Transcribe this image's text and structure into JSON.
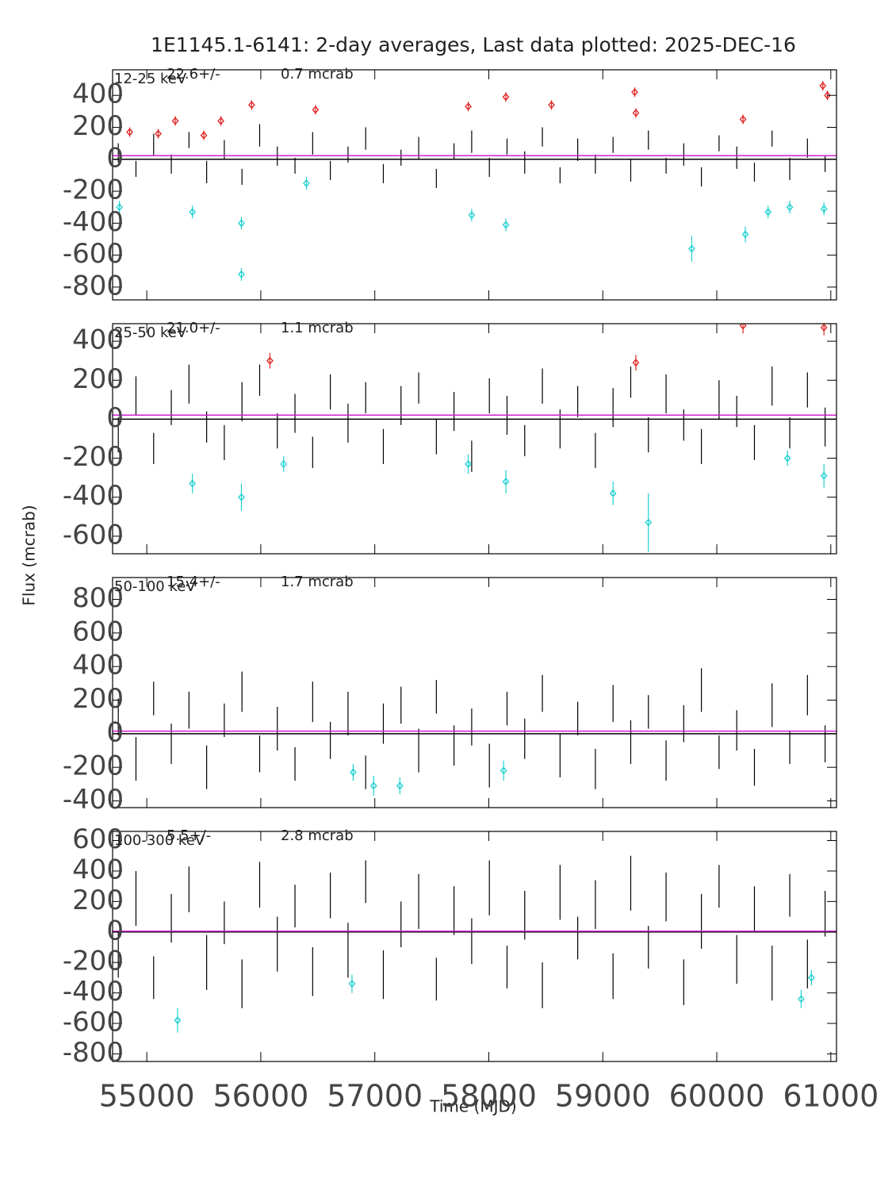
{
  "chart_data": [
    {
      "type": "errorbar",
      "title": "1E1145.1-6141:  2-day averages,  Last data plotted: 2025-DEC-16",
      "label": "12-25 keV",
      "mean": 22.6,
      "mean_label": "22.6+/-",
      "error_label": "0.7 mcrab",
      "xlim": [
        54700,
        61050
      ],
      "xticks": [
        55000,
        56000,
        57000,
        58000,
        59000,
        60000,
        61000
      ],
      "ylim": [
        -880,
        560
      ],
      "yticks": [
        -800,
        -600,
        -400,
        -200,
        0,
        200,
        400
      ],
      "series": [
        {
          "color": "#000000",
          "x": [
            54750,
            54905,
            55060,
            55215,
            55370,
            55525,
            55680,
            55835,
            55990,
            56145,
            56300,
            56455,
            56610,
            56765,
            56920,
            57075,
            57230,
            57385,
            57540,
            57695,
            57850,
            58005,
            58160,
            58315,
            58470,
            58625,
            58780,
            58935,
            59090,
            59245,
            59400,
            59555,
            59710,
            59865,
            60020,
            60175,
            60330,
            60485,
            60640,
            60795,
            60950
          ],
          "values": [
            40,
            -60,
            90,
            -30,
            120,
            -80,
            60,
            -110,
            150,
            20,
            -40,
            100,
            -70,
            30,
            130,
            -90,
            10,
            70,
            -120,
            50,
            110,
            -50,
            80,
            -20,
            140,
            -100,
            60,
            -30,
            90,
            -70,
            120,
            -40,
            30,
            -110,
            100,
            10,
            -80,
            130,
            -60,
            70,
            -30
          ],
          "errors": [
            60,
            50,
            70,
            60,
            50,
            70,
            60,
            50,
            70,
            60,
            50,
            70,
            60,
            50,
            70,
            60,
            50,
            70,
            60,
            50,
            70,
            60,
            50,
            70,
            60,
            50,
            70,
            60,
            50,
            70,
            60,
            50,
            70,
            60,
            50,
            70,
            60,
            50,
            70,
            60,
            50
          ]
        },
        {
          "color": "#e02020",
          "marker": true,
          "x": [
            54850,
            55100,
            55250,
            55500,
            55650,
            55920,
            56480,
            57820,
            58150,
            58550,
            59280,
            59290,
            60230,
            60930,
            60970
          ],
          "values": [
            170,
            160,
            240,
            150,
            240,
            340,
            310,
            330,
            390,
            340,
            420,
            290,
            250,
            460,
            400
          ],
          "errors": [
            30,
            30,
            30,
            30,
            30,
            30,
            30,
            30,
            30,
            30,
            30,
            30,
            30,
            30,
            30
          ]
        },
        {
          "color": "#20d0d0",
          "marker": true,
          "x": [
            54760,
            55400,
            55830,
            55830,
            56400,
            57850,
            58150,
            59780,
            60250,
            60450,
            60640,
            60940
          ],
          "values": [
            -300,
            -330,
            -400,
            -720,
            -150,
            -350,
            -410,
            -560,
            -470,
            -330,
            -300,
            -310
          ],
          "errors": [
            40,
            40,
            40,
            40,
            40,
            40,
            40,
            80,
            50,
            40,
            40,
            40
          ]
        }
      ]
    },
    {
      "type": "errorbar",
      "label": "25-50 keV",
      "mean": 21.0,
      "mean_label": "21.0+/-",
      "error_label": "1.1 mcrab",
      "ylabel": "Flux (mcrab)",
      "xlim": [
        54700,
        61050
      ],
      "xticks": [
        55000,
        56000,
        57000,
        58000,
        59000,
        60000,
        61000
      ],
      "ylim": [
        -690,
        490
      ],
      "yticks": [
        -600,
        -400,
        -200,
        0,
        200,
        400
      ],
      "series": [
        {
          "color": "#000000",
          "x": [
            54750,
            54905,
            55060,
            55215,
            55370,
            55525,
            55680,
            55835,
            55990,
            56145,
            56300,
            56455,
            56610,
            56765,
            56920,
            57075,
            57230,
            57385,
            57540,
            57695,
            57850,
            58005,
            58160,
            58315,
            58470,
            58625,
            58780,
            58935,
            59090,
            59245,
            59400,
            59555,
            59710,
            59865,
            60020,
            60175,
            60330,
            60485,
            60640,
            60795,
            60950
          ],
          "values": [
            -80,
            120,
            -150,
            60,
            180,
            -40,
            -120,
            90,
            200,
            -60,
            30,
            -170,
            140,
            -20,
            110,
            -140,
            70,
            160,
            -90,
            40,
            -190,
            120,
            20,
            -110,
            170,
            -50,
            90,
            -160,
            60,
            190,
            -80,
            130,
            -30,
            -140,
            100,
            40,
            -120,
            170,
            -70,
            150,
            -40
          ],
          "errors": [
            90,
            100,
            80,
            90,
            100,
            80,
            90,
            100,
            80,
            90,
            100,
            80,
            90,
            100,
            80,
            90,
            100,
            80,
            90,
            100,
            80,
            90,
            100,
            80,
            90,
            100,
            80,
            90,
            100,
            80,
            90,
            100,
            80,
            90,
            100,
            80,
            90,
            100,
            80,
            90,
            100
          ]
        },
        {
          "color": "#e02020",
          "marker": true,
          "x": [
            56080,
            59290,
            60230,
            60940
          ],
          "values": [
            300,
            290,
            480,
            470
          ],
          "errors": [
            40,
            40,
            40,
            40
          ]
        },
        {
          "color": "#20d0d0",
          "marker": true,
          "x": [
            55400,
            55830,
            56200,
            57820,
            58150,
            59090,
            59400,
            60620,
            60940
          ],
          "values": [
            -330,
            -400,
            -230,
            -230,
            -320,
            -380,
            -530,
            -200,
            -290
          ],
          "errors": [
            50,
            70,
            40,
            50,
            60,
            60,
            150,
            40,
            60
          ]
        }
      ]
    },
    {
      "type": "errorbar",
      "label": "50-100 keV",
      "mean": 15.4,
      "mean_label": "15.4+/-",
      "error_label": "1.7 mcrab",
      "xlim": [
        54700,
        61050
      ],
      "xticks": [
        55000,
        56000,
        57000,
        58000,
        59000,
        60000,
        61000
      ],
      "ylim": [
        -440,
        930
      ],
      "yticks": [
        -400,
        -200,
        0,
        200,
        400,
        600,
        800
      ],
      "series": [
        {
          "color": "#000000",
          "x": [
            54750,
            54905,
            55060,
            55215,
            55370,
            55525,
            55680,
            55835,
            55990,
            56145,
            56300,
            56455,
            56610,
            56765,
            56920,
            57075,
            57230,
            57385,
            57540,
            57695,
            57850,
            58005,
            58160,
            58315,
            58470,
            58625,
            58780,
            58935,
            59090,
            59245,
            59400,
            59555,
            59710,
            59865,
            60020,
            60175,
            60330,
            60485,
            60640,
            60795,
            60950
          ],
          "values": [
            100,
            -150,
            210,
            -60,
            140,
            -200,
            80,
            250,
            -120,
            30,
            -180,
            190,
            -40,
            120,
            -230,
            60,
            170,
            -100,
            220,
            -70,
            40,
            -190,
            150,
            -30,
            240,
            -130,
            90,
            -210,
            180,
            -50,
            130,
            -160,
            60,
            260,
            -110,
            20,
            -200,
            170,
            -80,
            230,
            -60
          ],
          "errors": [
            110,
            130,
            100,
            120,
            110,
            130,
            100,
            120,
            110,
            130,
            100,
            120,
            110,
            130,
            100,
            120,
            110,
            130,
            100,
            120,
            110,
            130,
            100,
            120,
            110,
            130,
            100,
            120,
            110,
            130,
            100,
            120,
            110,
            130,
            100,
            120,
            110,
            130,
            100,
            120,
            110
          ]
        },
        {
          "color": "#20d0d0",
          "marker": true,
          "x": [
            56810,
            56990,
            57220,
            58130
          ],
          "values": [
            -230,
            -310,
            -310,
            -220
          ],
          "errors": [
            50,
            60,
            50,
            60
          ]
        }
      ]
    },
    {
      "type": "errorbar",
      "label": "100-300 keV",
      "mean": 5.5,
      "mean_label": "5.5+/-",
      "error_label": "2.8 mcrab",
      "xlabel": "Time (MJD)",
      "xlim": [
        54700,
        61050
      ],
      "xticks": [
        55000,
        56000,
        57000,
        58000,
        59000,
        60000,
        61000
      ],
      "ylim": [
        -850,
        660
      ],
      "yticks": [
        -800,
        -600,
        -400,
        -200,
        0,
        200,
        400,
        600
      ],
      "series": [
        {
          "color": "#000000",
          "x": [
            54750,
            54905,
            55060,
            55215,
            55370,
            55525,
            55680,
            55835,
            55990,
            56145,
            56300,
            56455,
            56610,
            56765,
            56920,
            57075,
            57230,
            57385,
            57540,
            57695,
            57850,
            58005,
            58160,
            58315,
            58470,
            58625,
            58780,
            58935,
            59090,
            59245,
            59400,
            59555,
            59710,
            59865,
            60020,
            60175,
            60330,
            60485,
            60640,
            60795,
            60950
          ],
          "values": [
            -150,
            220,
            -300,
            90,
            280,
            -200,
            60,
            -340,
            310,
            -80,
            170,
            -260,
            240,
            -120,
            330,
            -280,
            50,
            200,
            -310,
            140,
            -60,
            290,
            -230,
            110,
            -350,
            260,
            -40,
            180,
            -290,
            320,
            -100,
            230,
            -330,
            70,
            300,
            -180,
            150,
            -270,
            240,
            -210,
            120
          ],
          "errors": [
            150,
            180,
            140,
            160,
            150,
            180,
            140,
            160,
            150,
            180,
            140,
            160,
            150,
            180,
            140,
            160,
            150,
            180,
            140,
            160,
            150,
            180,
            140,
            160,
            150,
            180,
            140,
            160,
            150,
            180,
            140,
            160,
            150,
            180,
            140,
            160,
            150,
            180,
            140,
            160,
            150
          ]
        },
        {
          "color": "#20d0d0",
          "marker": true,
          "x": [
            55270,
            56800,
            60740,
            60830
          ],
          "values": [
            -580,
            -340,
            -440,
            -300
          ],
          "errors": [
            80,
            60,
            60,
            50
          ]
        }
      ]
    }
  ]
}
